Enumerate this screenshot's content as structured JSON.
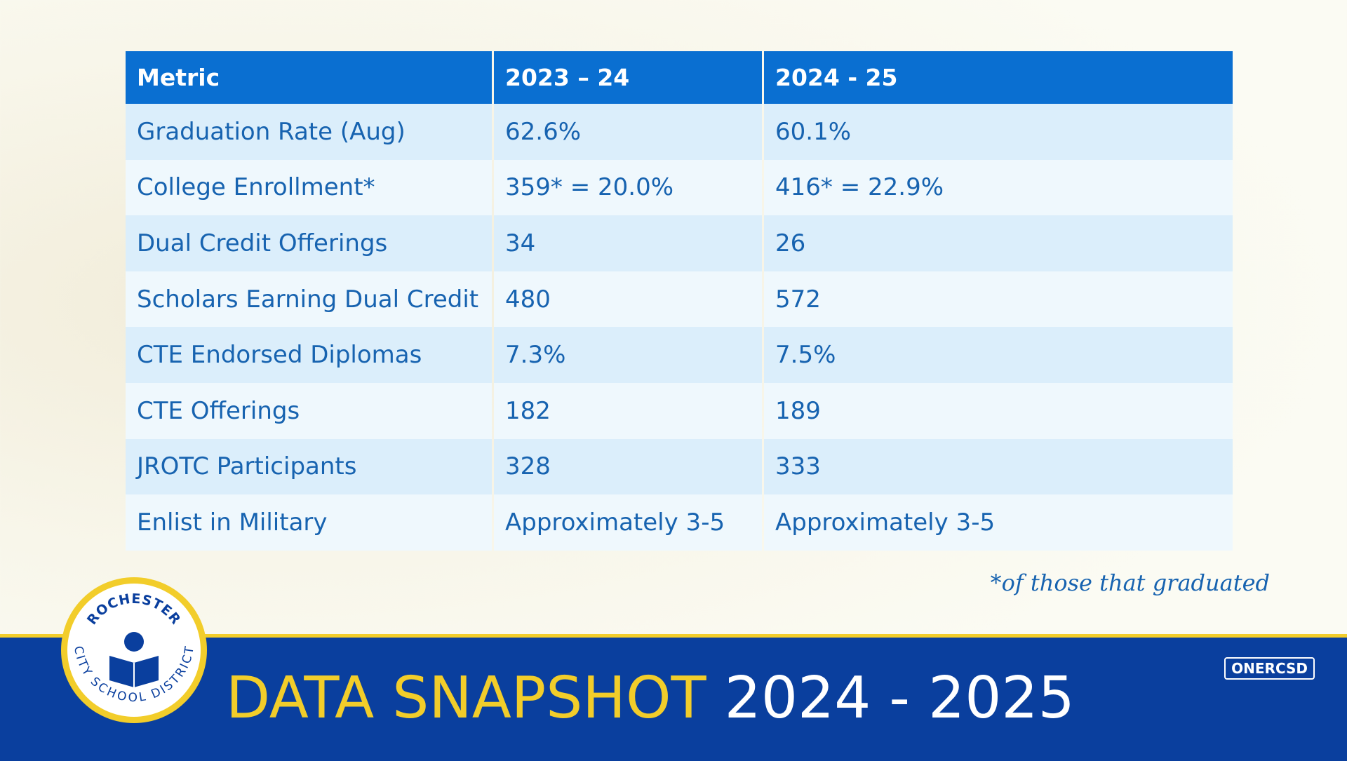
{
  "table": {
    "header": [
      "Metric",
      "2023 – 24",
      "2024 - 25"
    ],
    "rows": [
      [
        "Graduation Rate (Aug)",
        "62.6%",
        "60.1%"
      ],
      [
        "College Enrollment*",
        "359* = 20.0%",
        "416* = 22.9%"
      ],
      [
        "Dual Credit Offerings",
        "34",
        "26"
      ],
      [
        "Scholars Earning Dual Credit",
        "480",
        "572"
      ],
      [
        "CTE Endorsed Diplomas",
        "7.3%",
        "7.5%"
      ],
      [
        "CTE Offerings",
        "182",
        "189"
      ],
      [
        "JROTC Participants",
        "328",
        "333"
      ],
      [
        "Enlist in Military",
        "Approximately 3-5",
        "Approximately 3-5"
      ]
    ]
  },
  "footnote": "*of those that graduated",
  "footer": {
    "title": "DATA SNAPSHOT",
    "year": "2024 - 2025",
    "badge": "ONERCSD"
  },
  "logo": {
    "top_text": "ROCHESTER",
    "bottom_text": "CITY SCHOOL DISTRICT"
  }
}
